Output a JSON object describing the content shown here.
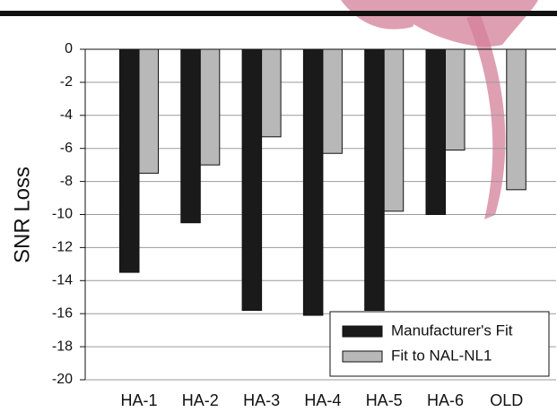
{
  "chart_data": {
    "type": "bar",
    "ylabel": "SNR Loss",
    "categories": [
      "HA-1",
      "HA-2",
      "HA-3",
      "HA-4",
      "HA-5",
      "HA-6",
      "OLD"
    ],
    "series": [
      {
        "name": "Manufacturer's Fit",
        "color": "#1a1a1a",
        "values": [
          -13.5,
          -10.5,
          -15.8,
          -16.1,
          -15.8,
          -10,
          null
        ]
      },
      {
        "name": "Fit to NAL-NL1",
        "color": "#b8b8b8",
        "values": [
          -7.5,
          -7,
          -5.3,
          -6.3,
          -9.8,
          -6.1,
          -8.5
        ]
      }
    ],
    "ylim": [
      -20,
      0
    ],
    "yticks": [
      0,
      -2,
      -4,
      -6,
      -8,
      -10,
      -12,
      -14,
      -16,
      -18,
      -20
    ],
    "grid": true,
    "legend": "lower right"
  }
}
